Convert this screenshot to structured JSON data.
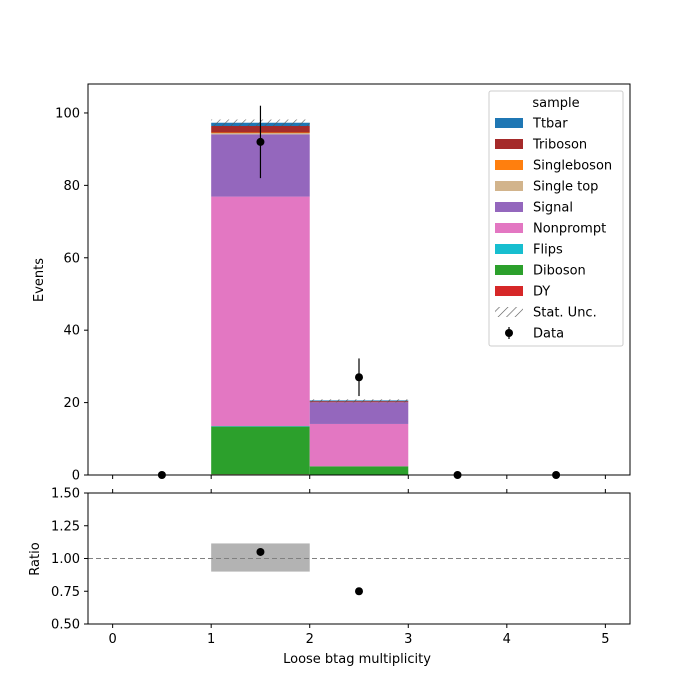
{
  "chart_data": [
    {
      "type": "bar",
      "stacked": true,
      "ylabel": "Events",
      "xlim": [
        -0.25,
        5.25
      ],
      "ylim": [
        0,
        108
      ],
      "yticks": [
        0,
        20,
        40,
        60,
        80,
        100
      ],
      "ytick_labels": [
        "0",
        "20",
        "40",
        "60",
        "80",
        "100"
      ],
      "bin_edges": [
        0,
        1,
        2,
        3,
        4,
        5
      ],
      "series": [
        {
          "name": "DY",
          "color": "#d62728",
          "values": [
            0,
            0.2,
            0.1,
            0,
            0
          ]
        },
        {
          "name": "Diboson",
          "color": "#2ca02c",
          "values": [
            0,
            13.2,
            2.3,
            0,
            0
          ]
        },
        {
          "name": "Flips",
          "color": "#17becf",
          "values": [
            0,
            0.1,
            0.0,
            0,
            0
          ]
        },
        {
          "name": "Nonprompt",
          "color": "#e377c2",
          "values": [
            0,
            63.4,
            11.7,
            0,
            0
          ]
        },
        {
          "name": "Signal",
          "color": "#9467bd",
          "values": [
            0,
            17.2,
            6.0,
            0,
            0
          ]
        },
        {
          "name": "Single top",
          "color": "#d2b48c",
          "values": [
            0,
            0.4,
            0.0,
            0,
            0
          ]
        },
        {
          "name": "Singleboson",
          "color": "#ff7f0e",
          "values": [
            0,
            0.1,
            0.0,
            0,
            0
          ]
        },
        {
          "name": "Triboson",
          "color": "#a52a2a",
          "values": [
            0,
            1.8,
            0.3,
            0,
            0
          ]
        },
        {
          "name": "Ttbar",
          "color": "#1f77b4",
          "values": [
            0,
            0.9,
            0.2,
            0,
            0
          ]
        }
      ],
      "stat_unc": {
        "name": "Stat. Unc.",
        "half_width": [
          0,
          0.9,
          0.3,
          0,
          0
        ]
      },
      "data_points": {
        "name": "Data",
        "x": [
          0.5,
          1.5,
          2.5,
          3.5,
          4.5
        ],
        "y": [
          0,
          92,
          27,
          0,
          0
        ],
        "yerr": [
          0,
          10,
          5.2,
          0,
          0
        ]
      },
      "legend": {
        "title": "sample",
        "placement": "top-right",
        "entries": [
          "Ttbar",
          "Triboson",
          "Singleboson",
          "Single top",
          "Signal",
          "Nonprompt",
          "Flips",
          "Diboson",
          "DY",
          "Stat. Unc.",
          "Data"
        ]
      }
    },
    {
      "type": "scatter",
      "ylabel": "Ratio",
      "xlabel": "Loose btag multiplicity",
      "xlim": [
        -0.25,
        5.25
      ],
      "ylim": [
        0.5,
        1.5
      ],
      "xticks": [
        0,
        1,
        2,
        3,
        4,
        5
      ],
      "xtick_labels": [
        "0",
        "1",
        "2",
        "3",
        "4",
        "5"
      ],
      "yticks": [
        0.5,
        0.75,
        1.0,
        1.25,
        1.5
      ],
      "ytick_labels": [
        "0.50",
        "0.75",
        "1.00",
        "1.25",
        "1.50"
      ],
      "reference_line": 1.0,
      "unc_band": [
        {
          "x0": 1,
          "x1": 2,
          "lo": 0.9,
          "hi": 1.115
        }
      ],
      "points": {
        "x": [
          1.5,
          2.5
        ],
        "y": [
          1.05,
          0.75
        ]
      }
    }
  ]
}
